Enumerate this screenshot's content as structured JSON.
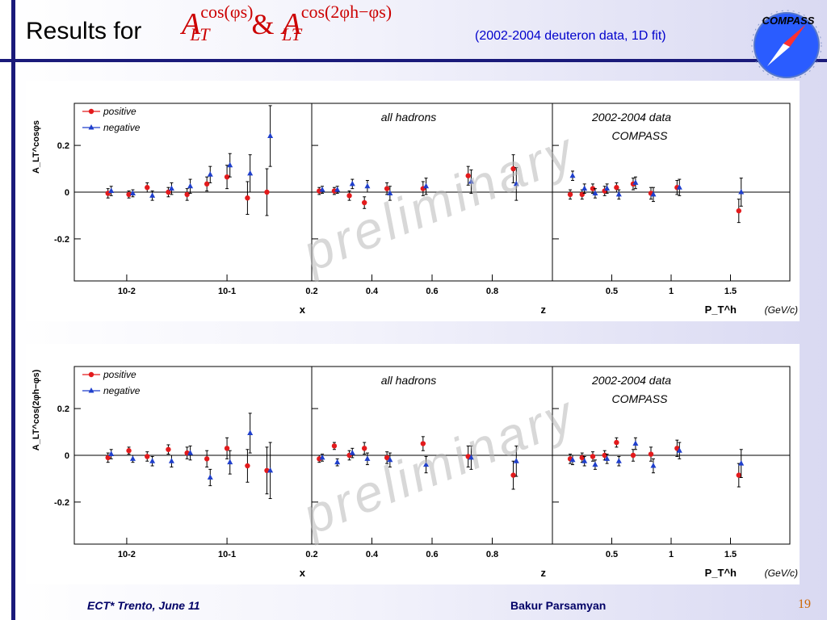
{
  "slide": {
    "title": "Results for",
    "formula": {
      "A": "A",
      "sup1": "cos(φs)",
      "sub": "LT",
      "amp": "&",
      "sup2": "cos(2φh−φs)"
    },
    "subtitle": "(2002-2004 deuteron data, 1D fit)",
    "logo_text": "COMPASS",
    "footer_left": "ECT* Trento, June 11",
    "footer_center": "Bakur Parsamyan",
    "page_number": "19",
    "watermark": "preliminary"
  },
  "colors": {
    "positive": "#e31a1c",
    "negative": "#1f3fcc",
    "accent": "#1a1a7a",
    "formula": "#cc0000",
    "subtitle": "#0000cc"
  },
  "chart_data": [
    {
      "type": "scatter",
      "ylabel": "A_LT^cosφs",
      "ylim": [
        -0.38,
        0.38
      ],
      "yticks": [
        0.2,
        0,
        -0.2
      ],
      "ytick_labels": [
        "0.2",
        "0",
        "-0.2"
      ],
      "legend": [
        "positive",
        "negative"
      ],
      "annotations": [
        "all hadrons",
        "2002-2004 data",
        "COMPASS"
      ],
      "subplots": [
        {
          "xlabel": "x",
          "xscale": "log",
          "xlim": [
            0.003,
            0.7
          ],
          "xticks": [
            0.01,
            0.1
          ],
          "xtick_labels": [
            "10-2",
            "10-1"
          ],
          "series": [
            {
              "name": "positive",
              "points": [
                [
                  0.0065,
                  -0.005,
                  0.02
                ],
                [
                  0.0105,
                  -0.01,
                  0.015
                ],
                [
                  0.016,
                  0.02,
                  0.02
                ],
                [
                  0.026,
                  0.0,
                  0.02
                ],
                [
                  0.04,
                  -0.01,
                  0.025
                ],
                [
                  0.063,
                  0.035,
                  0.03
                ],
                [
                  0.1,
                  0.065,
                  0.05
                ],
                [
                  0.16,
                  -0.025,
                  0.07
                ],
                [
                  0.25,
                  0.0,
                  0.1
                ]
              ]
            },
            {
              "name": "negative",
              "points": [
                [
                  0.007,
                  0.005,
                  0.02
                ],
                [
                  0.0115,
                  -0.005,
                  0.015
                ],
                [
                  0.018,
                  -0.015,
                  0.02
                ],
                [
                  0.028,
                  0.015,
                  0.025
                ],
                [
                  0.043,
                  0.025,
                  0.03
                ],
                [
                  0.068,
                  0.075,
                  0.035
                ],
                [
                  0.107,
                  0.115,
                  0.05
                ],
                [
                  0.17,
                  0.08,
                  0.08
                ],
                [
                  0.27,
                  0.24,
                  0.13
                ]
              ]
            }
          ]
        },
        {
          "xlabel": "z",
          "xscale": "linear",
          "xlim": [
            0.2,
            1.0
          ],
          "xticks": [
            0.2,
            0.4,
            0.6,
            0.8
          ],
          "xtick_labels": [
            "0.2",
            "0.4",
            "0.6",
            "0.8"
          ],
          "series": [
            {
              "name": "positive",
              "points": [
                [
                  0.225,
                  0.005,
                  0.015
                ],
                [
                  0.275,
                  0.005,
                  0.015
                ],
                [
                  0.325,
                  -0.015,
                  0.02
                ],
                [
                  0.375,
                  -0.045,
                  0.025
                ],
                [
                  0.45,
                  0.015,
                  0.025
                ],
                [
                  0.57,
                  0.015,
                  0.03
                ],
                [
                  0.72,
                  0.07,
                  0.04
                ],
                [
                  0.87,
                  0.1,
                  0.06
                ]
              ]
            },
            {
              "name": "negative",
              "points": [
                [
                  0.235,
                  0.01,
                  0.015
                ],
                [
                  0.285,
                  0.01,
                  0.015
                ],
                [
                  0.335,
                  0.035,
                  0.02
                ],
                [
                  0.385,
                  0.025,
                  0.025
                ],
                [
                  0.46,
                  -0.005,
                  0.03
                ],
                [
                  0.58,
                  0.025,
                  0.035
                ],
                [
                  0.73,
                  0.045,
                  0.05
                ],
                [
                  0.88,
                  0.035,
                  0.07
                ]
              ]
            }
          ]
        },
        {
          "xlabel": "P_T^h",
          "xunit": "(GeV/c)",
          "xscale": "linear",
          "xlim": [
            0.0,
            2.0
          ],
          "xticks": [
            0.5,
            1.0,
            1.5
          ],
          "xtick_labels": [
            "0.5",
            "1",
            "1.5"
          ],
          "series": [
            {
              "name": "positive",
              "points": [
                [
                  0.15,
                  -0.01,
                  0.02
                ],
                [
                  0.25,
                  -0.01,
                  0.02
                ],
                [
                  0.34,
                  0.015,
                  0.02
                ],
                [
                  0.44,
                  0.005,
                  0.02
                ],
                [
                  0.54,
                  0.02,
                  0.02
                ],
                [
                  0.68,
                  0.035,
                  0.025
                ],
                [
                  0.83,
                  -0.005,
                  0.025
                ],
                [
                  1.05,
                  0.02,
                  0.03
                ],
                [
                  1.57,
                  -0.08,
                  0.05
                ]
              ]
            },
            {
              "name": "negative",
              "points": [
                [
                  0.17,
                  0.07,
                  0.02
                ],
                [
                  0.27,
                  0.015,
                  0.02
                ],
                [
                  0.36,
                  -0.005,
                  0.02
                ],
                [
                  0.46,
                  0.015,
                  0.02
                ],
                [
                  0.56,
                  -0.01,
                  0.02
                ],
                [
                  0.7,
                  0.04,
                  0.025
                ],
                [
                  0.85,
                  -0.01,
                  0.03
                ],
                [
                  1.07,
                  0.02,
                  0.035
                ],
                [
                  1.59,
                  0.0,
                  0.06
                ]
              ]
            }
          ]
        }
      ]
    },
    {
      "type": "scatter",
      "ylabel": "A_LT^cos(2φh−φs)",
      "ylim": [
        -0.38,
        0.38
      ],
      "yticks": [
        0.2,
        0,
        -0.2
      ],
      "ytick_labels": [
        "0.2",
        "0",
        "-0.2"
      ],
      "legend": [
        "positive",
        "negative"
      ],
      "annotations": [
        "all hadrons",
        "2002-2004 data",
        "COMPASS"
      ],
      "subplots": [
        {
          "xlabel": "x",
          "xscale": "log",
          "xlim": [
            0.003,
            0.7
          ],
          "xticks": [
            0.01,
            0.1
          ],
          "xtick_labels": [
            "10-2",
            "10-1"
          ],
          "series": [
            {
              "name": "positive",
              "points": [
                [
                  0.0065,
                  -0.01,
                  0.02
                ],
                [
                  0.0105,
                  0.02,
                  0.015
                ],
                [
                  0.016,
                  -0.005,
                  0.02
                ],
                [
                  0.026,
                  0.025,
                  0.02
                ],
                [
                  0.04,
                  0.01,
                  0.025
                ],
                [
                  0.063,
                  -0.015,
                  0.035
                ],
                [
                  0.1,
                  0.03,
                  0.045
                ],
                [
                  0.16,
                  -0.045,
                  0.07
                ],
                [
                  0.25,
                  -0.065,
                  0.1
                ]
              ]
            },
            {
              "name": "negative",
              "points": [
                [
                  0.007,
                  0.005,
                  0.02
                ],
                [
                  0.0115,
                  -0.015,
                  0.015
                ],
                [
                  0.018,
                  -0.025,
                  0.02
                ],
                [
                  0.028,
                  -0.025,
                  0.025
                ],
                [
                  0.043,
                  0.01,
                  0.03
                ],
                [
                  0.068,
                  -0.095,
                  0.035
                ],
                [
                  0.107,
                  -0.03,
                  0.05
                ],
                [
                  0.17,
                  0.095,
                  0.085
                ],
                [
                  0.27,
                  -0.065,
                  0.12
                ]
              ]
            }
          ]
        },
        {
          "xlabel": "z",
          "xscale": "linear",
          "xlim": [
            0.2,
            1.0
          ],
          "xticks": [
            0.2,
            0.4,
            0.6,
            0.8
          ],
          "xtick_labels": [
            "0.2",
            "0.4",
            "0.6",
            "0.8"
          ],
          "series": [
            {
              "name": "positive",
              "points": [
                [
                  0.225,
                  -0.015,
                  0.015
                ],
                [
                  0.275,
                  0.04,
                  0.015
                ],
                [
                  0.325,
                  0.0,
                  0.02
                ],
                [
                  0.375,
                  0.03,
                  0.025
                ],
                [
                  0.45,
                  -0.01,
                  0.025
                ],
                [
                  0.57,
                  0.05,
                  0.03
                ],
                [
                  0.72,
                  -0.005,
                  0.045
                ],
                [
                  0.87,
                  -0.085,
                  0.06
                ]
              ]
            },
            {
              "name": "negative",
              "points": [
                [
                  0.235,
                  -0.01,
                  0.015
                ],
                [
                  0.285,
                  -0.03,
                  0.015
                ],
                [
                  0.335,
                  0.01,
                  0.02
                ],
                [
                  0.385,
                  -0.015,
                  0.025
                ],
                [
                  0.46,
                  -0.02,
                  0.03
                ],
                [
                  0.58,
                  -0.04,
                  0.035
                ],
                [
                  0.73,
                  -0.01,
                  0.05
                ],
                [
                  0.88,
                  -0.025,
                  0.065
                ]
              ]
            }
          ]
        },
        {
          "xlabel": "P_T^h",
          "xunit": "(GeV/c)",
          "xscale": "linear",
          "xlim": [
            0.0,
            2.0
          ],
          "xticks": [
            0.5,
            1.0,
            1.5
          ],
          "xtick_labels": [
            "0.5",
            "1",
            "1.5"
          ],
          "series": [
            {
              "name": "positive",
              "points": [
                [
                  0.15,
                  -0.015,
                  0.02
                ],
                [
                  0.25,
                  -0.01,
                  0.02
                ],
                [
                  0.34,
                  -0.005,
                  0.02
                ],
                [
                  0.44,
                  0.0,
                  0.02
                ],
                [
                  0.54,
                  0.055,
                  0.02
                ],
                [
                  0.68,
                  0.0,
                  0.025
                ],
                [
                  0.83,
                  0.005,
                  0.03
                ],
                [
                  1.05,
                  0.03,
                  0.035
                ],
                [
                  1.57,
                  -0.085,
                  0.05
                ]
              ]
            },
            {
              "name": "negative",
              "points": [
                [
                  0.17,
                  -0.02,
                  0.02
                ],
                [
                  0.27,
                  -0.025,
                  0.02
                ],
                [
                  0.36,
                  -0.04,
                  0.02
                ],
                [
                  0.46,
                  -0.015,
                  0.02
                ],
                [
                  0.56,
                  -0.025,
                  0.02
                ],
                [
                  0.7,
                  0.05,
                  0.025
                ],
                [
                  0.85,
                  -0.045,
                  0.03
                ],
                [
                  1.07,
                  0.02,
                  0.035
                ],
                [
                  1.59,
                  -0.035,
                  0.06
                ]
              ]
            }
          ]
        }
      ]
    }
  ]
}
